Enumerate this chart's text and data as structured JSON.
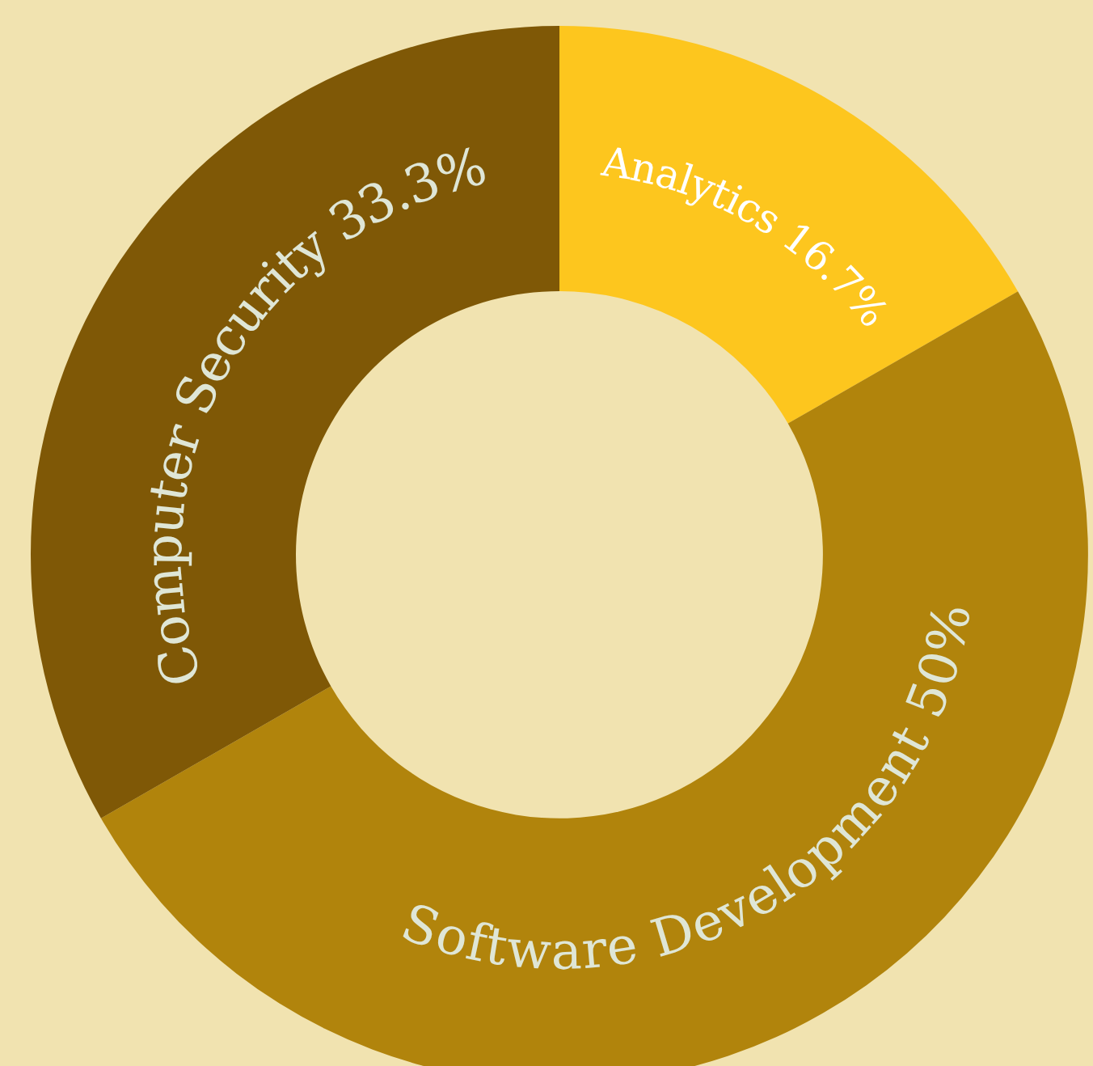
{
  "chart_data": {
    "type": "donut",
    "categories": [
      "Analytics",
      "Software Development",
      "Computer Security"
    ],
    "values": [
      16.7,
      50,
      33.3
    ],
    "value_labels": [
      "16.7%",
      "50%",
      "33.3%"
    ],
    "colors": [
      "#fdc61e",
      "#b1840c",
      "#7f5806"
    ]
  }
}
